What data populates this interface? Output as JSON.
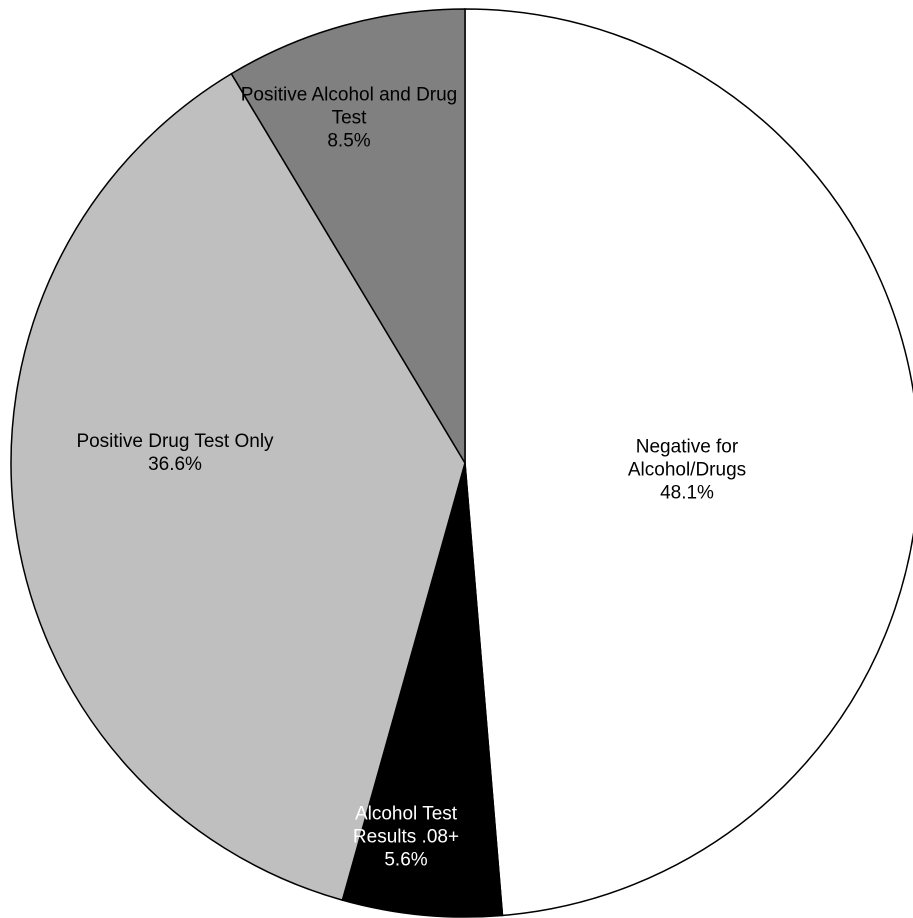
{
  "chart_data": {
    "type": "pie",
    "categories": [
      "Negative for Alcohol/Drugs",
      "Alcohol Test Results .08+",
      "Positive Drug Test Only",
      "Positive Alcohol and Drug Test"
    ],
    "values": [
      48.1,
      5.6,
      36.6,
      8.5
    ],
    "value_labels": [
      "48.1%",
      "5.6%",
      "36.6%",
      "8.5%"
    ],
    "colors": [
      "#ffffff",
      "#000000",
      "#bfbfbf",
      "#808080"
    ],
    "label_colors": [
      "#000000",
      "#ffffff",
      "#000000",
      "#000000"
    ],
    "start_angle": 0,
    "direction": "clockwise"
  }
}
